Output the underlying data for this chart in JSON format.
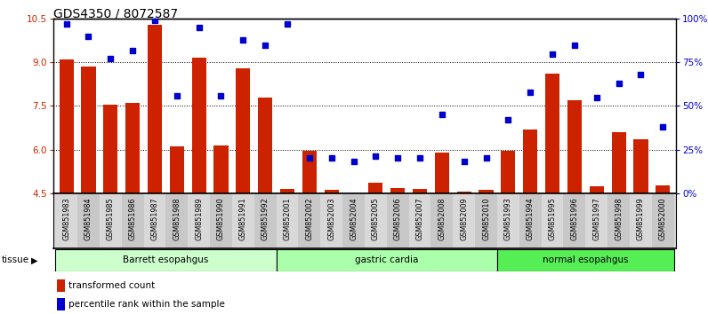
{
  "title": "GDS4350 / 8072587",
  "samples": [
    "GSM851983",
    "GSM851984",
    "GSM851985",
    "GSM851986",
    "GSM851987",
    "GSM851988",
    "GSM851989",
    "GSM851990",
    "GSM851991",
    "GSM851992",
    "GSM852001",
    "GSM852002",
    "GSM852003",
    "GSM852004",
    "GSM852005",
    "GSM852006",
    "GSM852007",
    "GSM852008",
    "GSM852009",
    "GSM852010",
    "GSM851993",
    "GSM851994",
    "GSM851995",
    "GSM851996",
    "GSM851997",
    "GSM851998",
    "GSM851999",
    "GSM852000"
  ],
  "bar_values": [
    9.1,
    8.85,
    7.55,
    7.6,
    10.3,
    6.1,
    9.15,
    6.15,
    8.8,
    7.78,
    4.65,
    5.95,
    4.6,
    4.5,
    4.85,
    4.68,
    4.65,
    5.9,
    4.55,
    4.62,
    5.95,
    6.7,
    8.6,
    7.7,
    4.75,
    6.6,
    6.35,
    4.78
  ],
  "percentile_values": [
    97,
    90,
    77,
    82,
    99,
    56,
    95,
    56,
    88,
    85,
    97,
    20,
    20,
    18,
    21,
    20,
    20,
    45,
    18,
    20,
    42,
    58,
    80,
    85,
    55,
    63,
    68,
    38
  ],
  "tissue_groups": [
    {
      "label": "Barrett esopahgus",
      "start": 0,
      "end": 10,
      "color": "#ccffcc"
    },
    {
      "label": "gastric cardia",
      "start": 10,
      "end": 20,
      "color": "#aaffaa"
    },
    {
      "label": "normal esopahgus",
      "start": 20,
      "end": 28,
      "color": "#55ee55"
    }
  ],
  "bar_color": "#cc2200",
  "dot_color": "#0000cc",
  "ylim_left": [
    4.5,
    10.5
  ],
  "ylim_right": [
    0,
    100
  ],
  "yticks_left": [
    4.5,
    6.0,
    7.5,
    9.0,
    10.5
  ],
  "yticks_right": [
    0,
    25,
    50,
    75,
    100
  ],
  "title_fontsize": 10,
  "legend_items": [
    {
      "color": "#cc2200",
      "label": "transformed count"
    },
    {
      "color": "#0000cc",
      "label": "percentile rank within the sample"
    }
  ],
  "col_colors": [
    "#d8d8d8",
    "#c8c8c8"
  ]
}
